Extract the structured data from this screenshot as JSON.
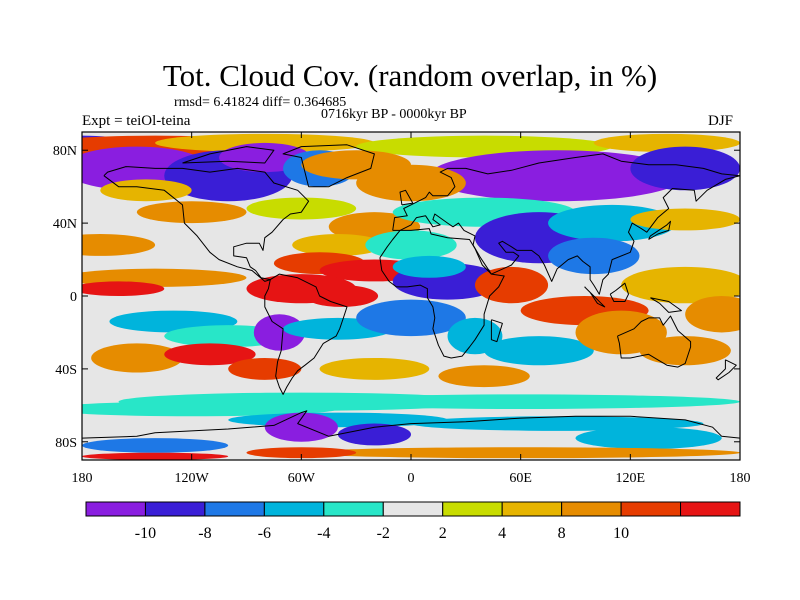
{
  "title": "Tot. Cloud Cov. (random overlap, in %)",
  "stats": "rmsd= 6.41824 diff= 0.364685",
  "period": "0716kyr BP - 0000kyr BP",
  "experiment": "Expt = teiOl-teina",
  "season": "DJF",
  "map": {
    "projection": "cylindrical-equidistant",
    "lon_range": [
      -180,
      180
    ],
    "lat_range": [
      -90,
      90
    ],
    "lon_ticks": [
      {
        "value": -180,
        "label": "180"
      },
      {
        "value": -120,
        "label": "120W"
      },
      {
        "value": -60,
        "label": "60W"
      },
      {
        "value": 0,
        "label": "0"
      },
      {
        "value": 60,
        "label": "60E"
      },
      {
        "value": 120,
        "label": "120E"
      },
      {
        "value": 180,
        "label": "180"
      }
    ],
    "lat_ticks": [
      {
        "value": 80,
        "label": "80N"
      },
      {
        "value": 40,
        "label": "40N"
      },
      {
        "value": 0,
        "label": "0"
      },
      {
        "value": -40,
        "label": "40S"
      },
      {
        "value": -80,
        "label": "80S"
      }
    ],
    "coastlines": true
  },
  "colorbar": {
    "levels": [
      -10,
      -8,
      -6,
      -4,
      -2,
      2,
      4,
      8,
      10
    ],
    "labels": [
      "-10",
      "-8",
      "-6",
      "-4",
      "-2",
      "2",
      "4",
      "8",
      "10"
    ],
    "colors": [
      "#8a1ee0",
      "#3a1ed6",
      "#1e78e6",
      "#00b4dc",
      "#28e6c8",
      "#e6e6e6",
      "#c8dc00",
      "#e6b400",
      "#e68c00",
      "#e63c00",
      "#e61414"
    ]
  }
}
